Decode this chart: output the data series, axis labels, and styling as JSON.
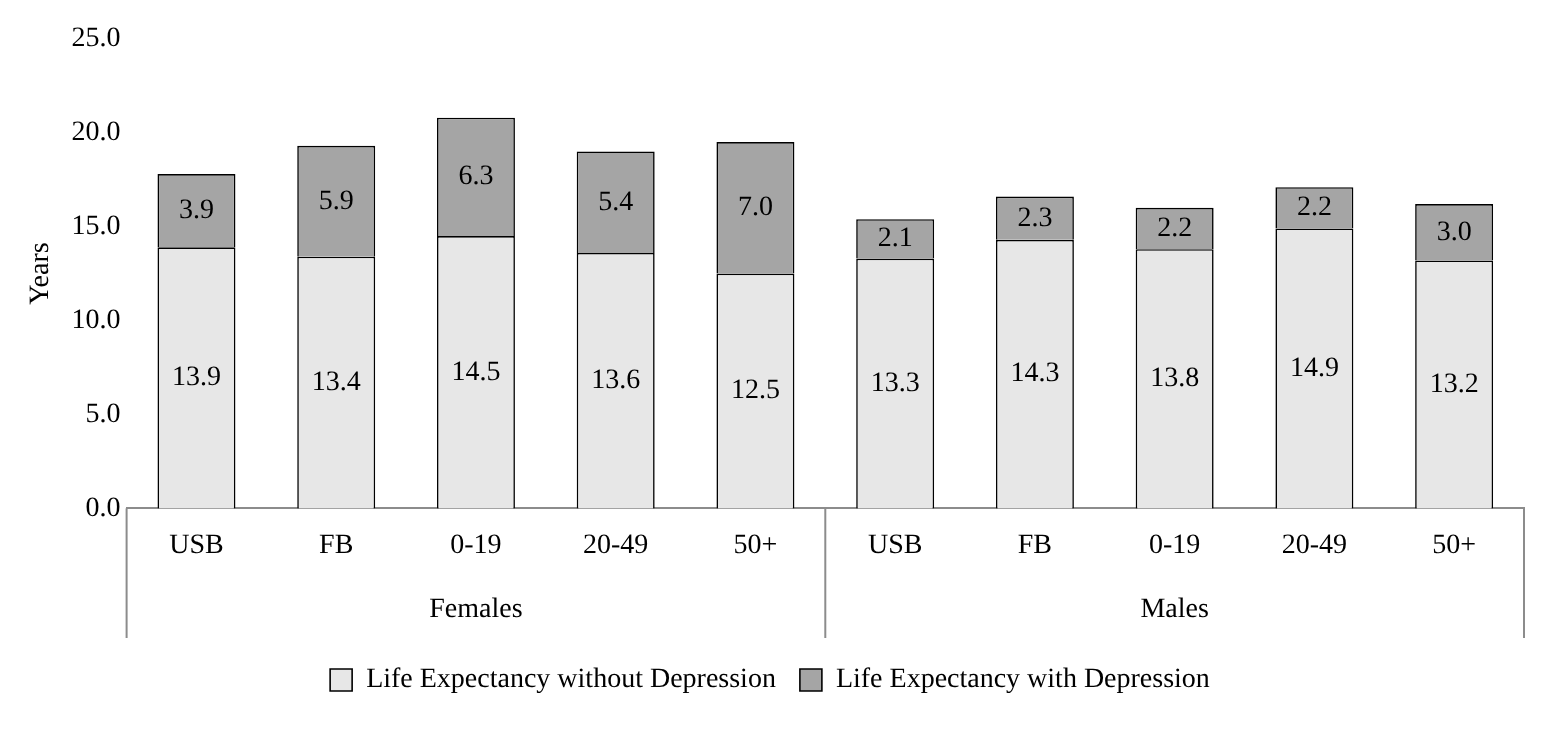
{
  "chart_data": {
    "type": "bar",
    "stacked": true,
    "ylabel": "Years",
    "categories": [
      "USB",
      "FB",
      "0-19",
      "20-49",
      "50+",
      "USB",
      "FB",
      "0-19",
      "20-49",
      "50+"
    ],
    "annotations": [
      "Females",
      "Males"
    ],
    "series": [
      {
        "name": "Life Expectancy without Depression",
        "color": "#e7e7e7",
        "values": [
          13.9,
          13.4,
          14.5,
          13.6,
          12.5,
          13.3,
          14.3,
          13.8,
          14.9,
          13.2
        ],
        "value_labels": [
          "13.9",
          "13.4",
          "14.5",
          "13.6",
          "12.5",
          "13.3",
          "14.3",
          "13.8",
          "14.9",
          "13.2"
        ]
      },
      {
        "name": "Life Expectancy with Depression",
        "color": "#a5a5a5",
        "values": [
          3.9,
          5.9,
          6.3,
          5.4,
          7.0,
          2.1,
          2.3,
          2.2,
          2.2,
          3.0
        ],
        "value_labels": [
          "3.9",
          "5.9",
          "6.3",
          "5.4",
          "7.0",
          "2.1",
          "2.3",
          "2.2",
          "2.2",
          "3.0"
        ]
      }
    ],
    "ylim": [
      0,
      25
    ],
    "yticks": [
      {
        "value": 0,
        "label": "0.0"
      },
      {
        "value": 5,
        "label": "5.0"
      },
      {
        "value": 10,
        "label": "10.0"
      },
      {
        "value": 15,
        "label": "15.0"
      },
      {
        "value": 20,
        "label": "20.0"
      },
      {
        "value": 25,
        "label": "25.0"
      }
    ],
    "grid": false,
    "legend": "bottom"
  }
}
